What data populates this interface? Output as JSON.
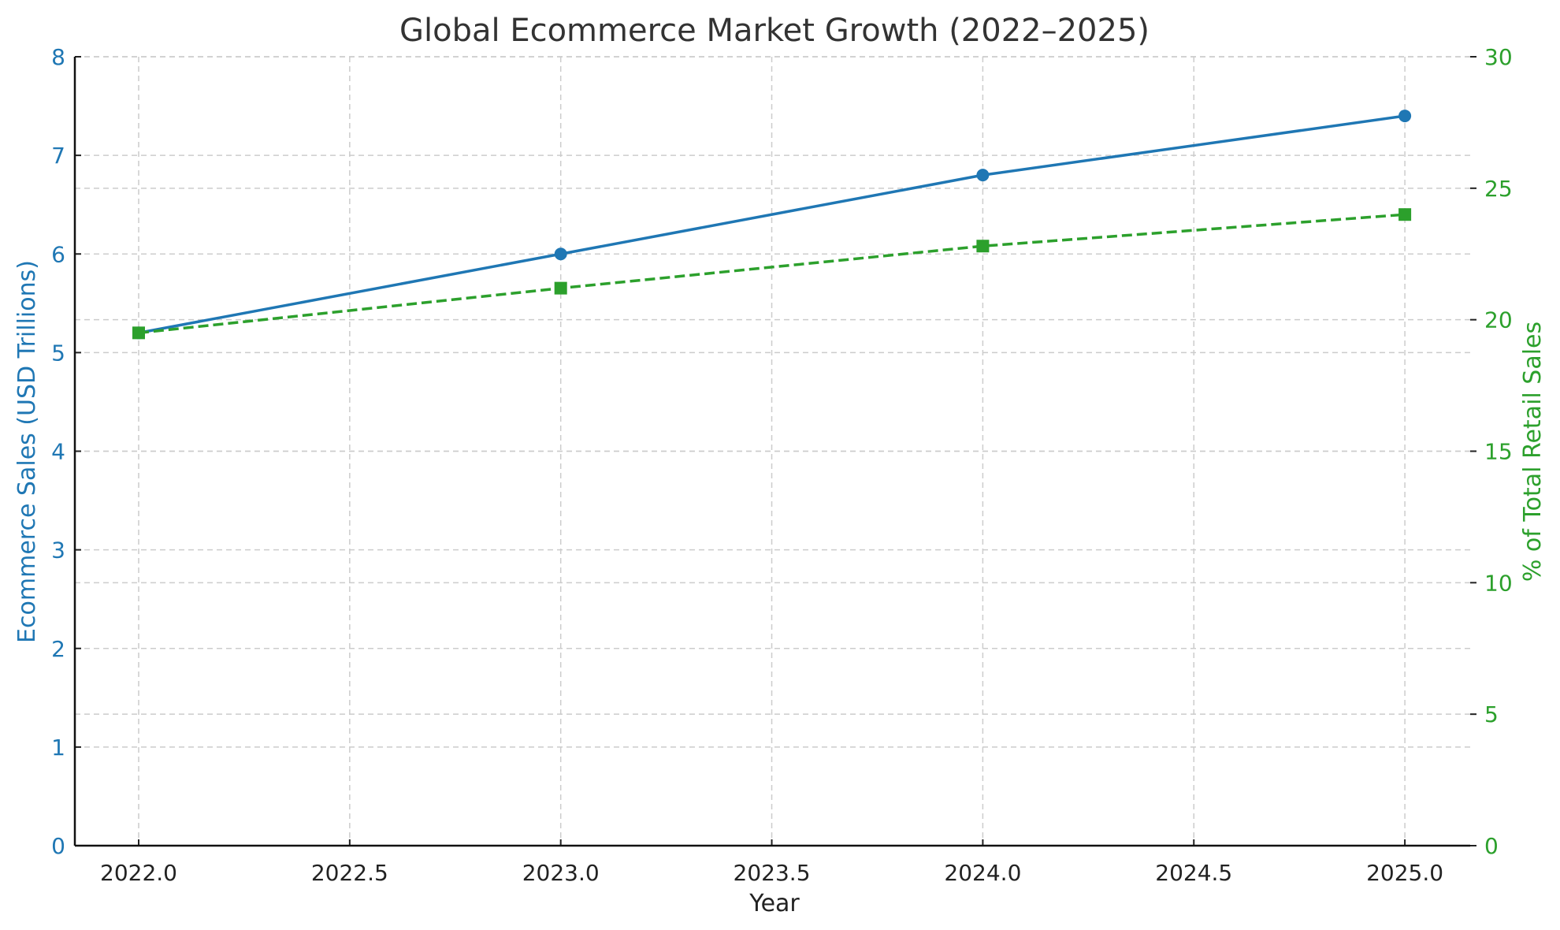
{
  "chart_data": {
    "type": "line",
    "title": "Global Ecommerce Market Growth (2022–2025)",
    "xlabel": "Year",
    "ylabel": "Ecommerce Sales (USD Trillions)",
    "y2label": "% of Total Retail Sales",
    "x": [
      2022,
      2023,
      2024,
      2025
    ],
    "xticks": [
      "2022.0",
      "2022.5",
      "2023.0",
      "2023.5",
      "2024.0",
      "2024.5",
      "2025.0"
    ],
    "xlim": [
      2021.85,
      2025.15
    ],
    "ylim": [
      0,
      8
    ],
    "yticks": [
      "0",
      "1",
      "2",
      "3",
      "4",
      "5",
      "6",
      "7",
      "8"
    ],
    "y2lim": [
      0,
      30
    ],
    "y2ticks": [
      "0",
      "5",
      "10",
      "15",
      "20",
      "25",
      "30"
    ],
    "grid": true,
    "legend": null,
    "series": [
      {
        "name": "Ecommerce Sales (USD Trillions)",
        "axis": "left",
        "values": [
          5.2,
          6.0,
          6.8,
          7.4
        ],
        "color": "#1f77b4",
        "style": "solid",
        "marker": "circle"
      },
      {
        "name": "% of Total Retail Sales",
        "axis": "right",
        "values": [
          19.5,
          21.2,
          22.8,
          24.0
        ],
        "color": "#2ca02c",
        "style": "dashed",
        "marker": "square"
      }
    ]
  }
}
